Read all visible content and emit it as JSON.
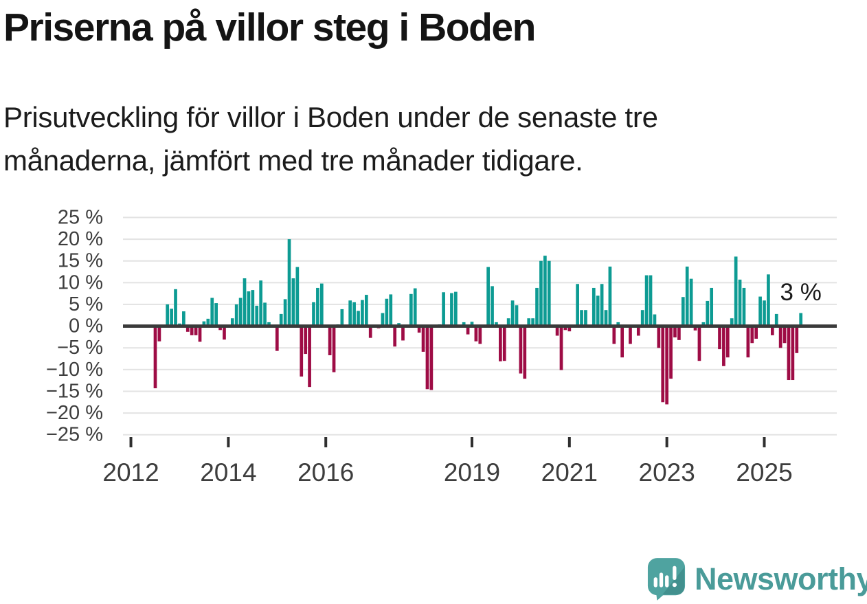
{
  "header": {
    "title": "Priserna på villor steg i Boden",
    "subtitle_line1": "Prisutveckling för villor i Boden under de senaste tre",
    "subtitle_line2": "månaderna, jämfört med tre månader tidigare."
  },
  "chart_data": {
    "type": "bar",
    "title": "Priserna på villor steg i Boden",
    "subtitle": "Prisutveckling för villor i Boden under de senaste tre månaderna, jämfört med tre månader tidigare.",
    "unit": "%",
    "frequency": "monthly",
    "start_month": "2012-07",
    "values": [
      -14.3,
      -3.5,
      0,
      5,
      4,
      8.5,
      0.6,
      3.4,
      -1.3,
      -2.1,
      -2.1,
      -3.6,
      1.1,
      1.7,
      6.5,
      5.3,
      -0.9,
      -3.1,
      0,
      1.8,
      5,
      6.5,
      11,
      8,
      8.3,
      4.7,
      10.5,
      5.4,
      0.9,
      0,
      -5.7,
      2.8,
      6.2,
      20,
      11,
      13.6,
      -11.6,
      -6.4,
      -14,
      5.5,
      8.8,
      9.8,
      0,
      -6.7,
      -10.6,
      0.4,
      3.9,
      0,
      5.9,
      5.5,
      3.5,
      6,
      7.2,
      -2.7,
      0,
      -0.5,
      3,
      6.3,
      7.3,
      -4.7,
      0.7,
      -3.3,
      0,
      7.4,
      8.7,
      -1.5,
      -5.9,
      -14.5,
      -14.7,
      0,
      0.4,
      7.8,
      0,
      7.6,
      7.9,
      0,
      0.9,
      -1.9,
      1,
      -3.5,
      -4.1,
      0,
      13.6,
      9.2,
      0.9,
      -8.1,
      -8,
      1.8,
      5.9,
      4.8,
      -10.9,
      -12.1,
      1.8,
      1.8,
      8.8,
      15,
      16.2,
      15,
      0,
      -2.2,
      -10.1,
      -0.9,
      -1.2,
      0,
      9.7,
      3.7,
      3.7,
      0,
      8.8,
      7,
      9.7,
      3.7,
      13.7,
      -4.1,
      0.9,
      -7.2,
      0,
      -4.1,
      0,
      -2.2,
      3.7,
      11.7,
      11.7,
      2.7,
      -5,
      -17.5,
      -18,
      -12.1,
      -2.6,
      -3.2,
      6.7,
      13.7,
      10.9,
      -1,
      -8,
      0.9,
      5.8,
      8.8,
      0,
      -5.3,
      -9.2,
      -7.2,
      1.8,
      16,
      10.7,
      8.8,
      -7.2,
      -3.9,
      -2.9,
      6.8,
      5.9,
      11.9,
      -2.1,
      2.8,
      -5,
      -3.9,
      -12.4,
      -12.4,
      -6.2,
      3
    ],
    "positive_color": "#0d9b93",
    "negative_color": "#9e0c45",
    "ylim": [
      -25,
      25
    ],
    "ytick_step": 5,
    "yticks": [
      {
        "value": 25,
        "label": "25 %"
      },
      {
        "value": 20,
        "label": "20 %"
      },
      {
        "value": 15,
        "label": "15 %"
      },
      {
        "value": 10,
        "label": "10 %"
      },
      {
        "value": 5,
        "label": "5 %"
      },
      {
        "value": 0,
        "label": "0 %"
      },
      {
        "value": -5,
        "label": "−5 %"
      },
      {
        "value": -10,
        "label": "−10 %"
      },
      {
        "value": -15,
        "label": "−15 %"
      },
      {
        "value": -20,
        "label": "−20 %"
      },
      {
        "value": -25,
        "label": "−25 %"
      }
    ],
    "xticks": [
      {
        "year": 2012,
        "label": "2012"
      },
      {
        "year": 2014,
        "label": "2014"
      },
      {
        "year": 2016,
        "label": "2016"
      },
      {
        "year": 2019,
        "label": "2019"
      },
      {
        "year": 2021,
        "label": "2021"
      },
      {
        "year": 2023,
        "label": "2023"
      },
      {
        "year": 2025,
        "label": "2025"
      }
    ],
    "annotation": {
      "text": "3 %",
      "value": 3,
      "position": "last-bar"
    },
    "grid": true,
    "legend": "none"
  },
  "footer": {
    "brand": "Newsworthy",
    "logo_icon": "newsworthy-speech-bubble-chart-icon",
    "brand_color": "#4a9b99",
    "logo_fill": "#4fa3a0",
    "logo_shade": "#42908e"
  }
}
